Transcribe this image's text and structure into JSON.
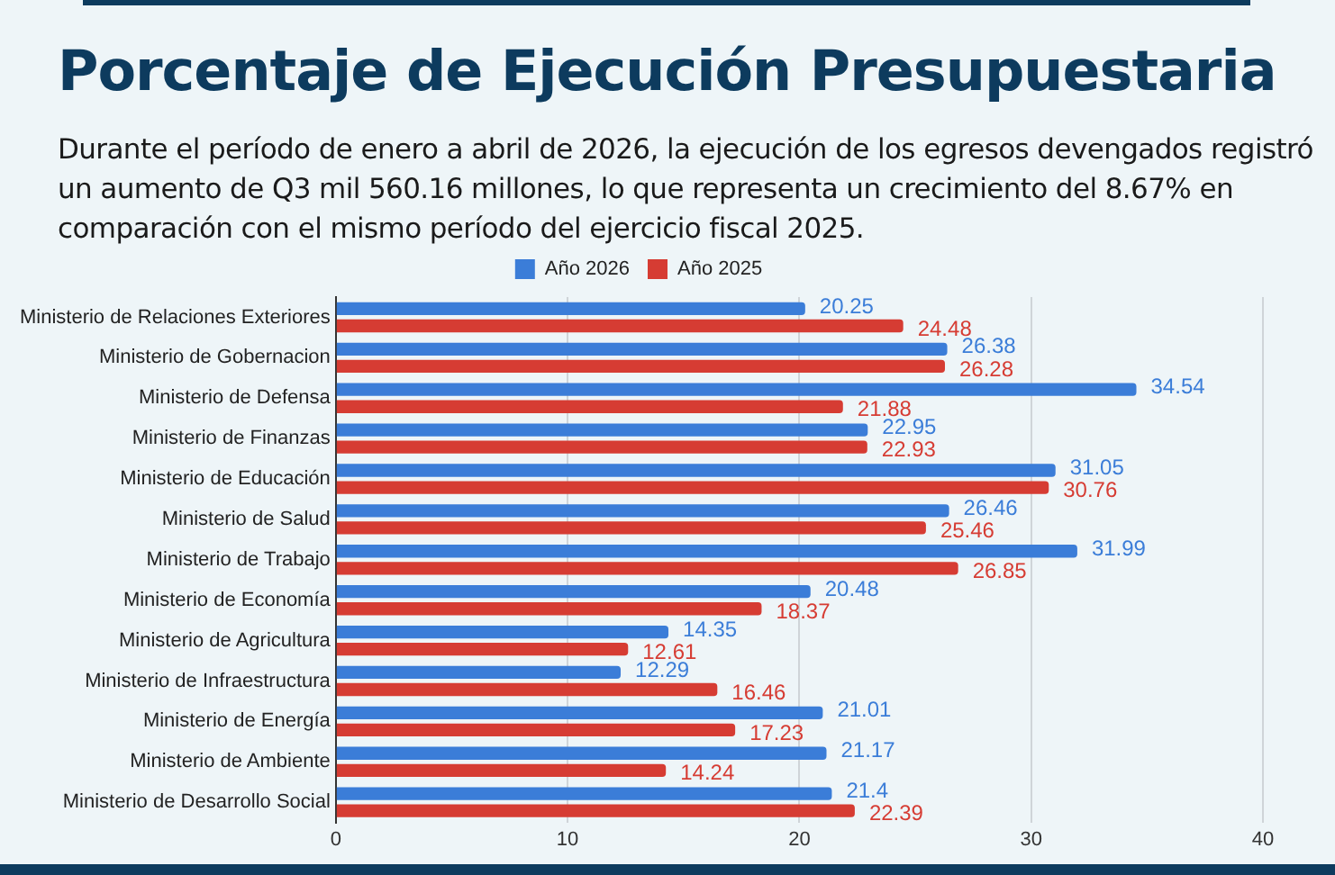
{
  "chart_data": {
    "type": "bar",
    "orientation": "horizontal",
    "title": "Porcentaje de Ejecución Presupuestaria",
    "subtitle": "Durante el período de enero a abril de 2026, la ejecución de los egresos devengados registró un aumento de Q3 mil 560.16 millones, lo que representa un crecimiento del 8.67% en comparación con el mismo período del ejercicio fiscal 2025.",
    "categories": [
      "Ministerio de Relaciones Exteriores",
      "Ministerio de Gobernacion",
      "Ministerio de Defensa",
      "Ministerio de Finanzas",
      "Ministerio de Educación",
      "Ministerio de Salud",
      "Ministerio de Trabajo",
      "Ministerio de Economía",
      "Ministerio de Agricultura",
      "Ministerio de Infraestructura",
      "Ministerio de Energía",
      "Ministerio de Ambiente",
      "Ministerio de Desarrollo Social"
    ],
    "series": [
      {
        "name": "Año 2026",
        "color": "#3b7dd8",
        "values": [
          20.25,
          26.38,
          34.54,
          22.95,
          31.05,
          26.46,
          31.99,
          20.48,
          14.35,
          12.29,
          21.01,
          21.17,
          21.4
        ]
      },
      {
        "name": "Año 2025",
        "color": "#d63c33",
        "values": [
          24.48,
          26.28,
          21.88,
          22.93,
          30.76,
          25.46,
          26.85,
          18.37,
          12.61,
          16.46,
          17.23,
          14.24,
          22.39
        ]
      }
    ],
    "xlim": [
      0,
      40
    ],
    "xticks": [
      0,
      10,
      20,
      30,
      40
    ],
    "grid": "x",
    "legend": "top",
    "data_labels": true
  }
}
